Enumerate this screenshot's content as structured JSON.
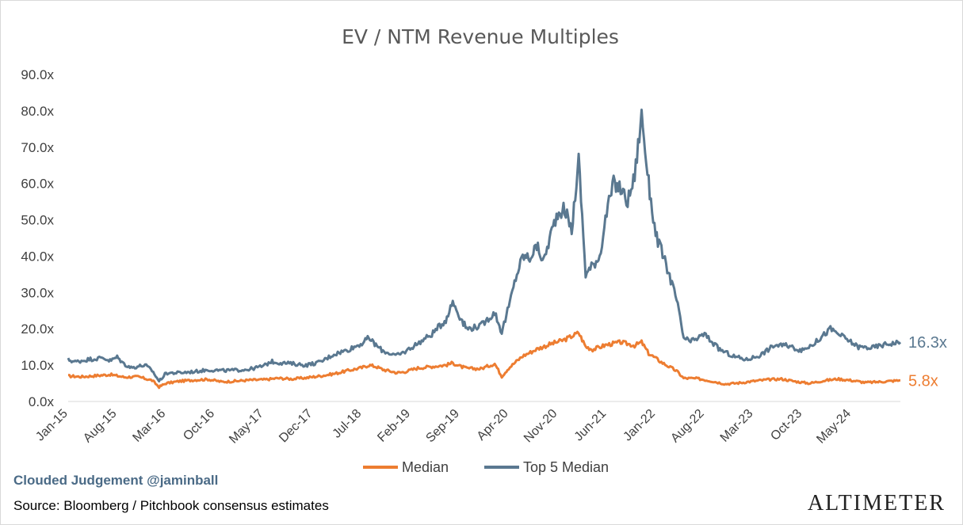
{
  "chart_data": {
    "type": "line",
    "title": "EV / NTM Revenue Multiples",
    "y_tick_labels": [
      "0.0x",
      "10.0x",
      "20.0x",
      "30.0x",
      "40.0x",
      "50.0x",
      "60.0x",
      "70.0x",
      "80.0x",
      "90.0x"
    ],
    "ylim": [
      0,
      90
    ],
    "x_tick_labels": [
      "Jan-15",
      "Aug-15",
      "Mar-16",
      "Oct-16",
      "May-17",
      "Dec-17",
      "Jul-18",
      "Feb-19",
      "Sep-19",
      "Apr-20",
      "Nov-20",
      "Jun-21",
      "Jan-22",
      "Aug-22",
      "Mar-23",
      "Oct-23",
      "May-24"
    ],
    "xlim": [
      "2015-01",
      "2024-12"
    ],
    "grid": false,
    "legend_position": "bottom",
    "series": [
      {
        "name": "Median",
        "color": "#ED7D31",
        "end_label": "5.8x",
        "points": [
          [
            "2015-01",
            7.0
          ],
          [
            "2015-03",
            6.8
          ],
          [
            "2015-05",
            7.1
          ],
          [
            "2015-07",
            7.4
          ],
          [
            "2015-09",
            6.7
          ],
          [
            "2015-11",
            6.8
          ],
          [
            "2016-01",
            5.8
          ],
          [
            "2016-02",
            4.0
          ],
          [
            "2016-03",
            5.0
          ],
          [
            "2016-05",
            5.6
          ],
          [
            "2016-07",
            5.9
          ],
          [
            "2016-09",
            6.1
          ],
          [
            "2016-11",
            5.4
          ],
          [
            "2017-01",
            5.6
          ],
          [
            "2017-03",
            5.9
          ],
          [
            "2017-05",
            6.0
          ],
          [
            "2017-07",
            6.4
          ],
          [
            "2017-09",
            6.2
          ],
          [
            "2017-11",
            6.5
          ],
          [
            "2018-01",
            7.0
          ],
          [
            "2018-03",
            7.6
          ],
          [
            "2018-05",
            8.5
          ],
          [
            "2018-07",
            9.3
          ],
          [
            "2018-08",
            10.0
          ],
          [
            "2018-09",
            9.6
          ],
          [
            "2018-10",
            8.8
          ],
          [
            "2018-12",
            7.9
          ],
          [
            "2019-01",
            8.1
          ],
          [
            "2019-03",
            9.2
          ],
          [
            "2019-05",
            9.6
          ],
          [
            "2019-07",
            10.0
          ],
          [
            "2019-08",
            10.6
          ],
          [
            "2019-09",
            9.7
          ],
          [
            "2019-10",
            9.1
          ],
          [
            "2019-12",
            9.0
          ],
          [
            "2020-02",
            10.4
          ],
          [
            "2020-03",
            6.9
          ],
          [
            "2020-04",
            9.2
          ],
          [
            "2020-06",
            12.5
          ],
          [
            "2020-08",
            14.4
          ],
          [
            "2020-10",
            15.8
          ],
          [
            "2020-12",
            17.0
          ],
          [
            "2021-02",
            18.9
          ],
          [
            "2021-03",
            15.1
          ],
          [
            "2021-04",
            14.3
          ],
          [
            "2021-06",
            15.6
          ],
          [
            "2021-08",
            16.3
          ],
          [
            "2021-10",
            15.4
          ],
          [
            "2021-11",
            16.3
          ],
          [
            "2021-12",
            13.2
          ],
          [
            "2022-02",
            10.6
          ],
          [
            "2022-04",
            8.4
          ],
          [
            "2022-05",
            6.4
          ],
          [
            "2022-07",
            6.3
          ],
          [
            "2022-09",
            5.6
          ],
          [
            "2022-11",
            4.8
          ],
          [
            "2023-01",
            5.1
          ],
          [
            "2023-03",
            5.6
          ],
          [
            "2023-05",
            6.0
          ],
          [
            "2023-07",
            6.2
          ],
          [
            "2023-09",
            5.5
          ],
          [
            "2023-11",
            5.0
          ],
          [
            "2024-01",
            5.7
          ],
          [
            "2024-03",
            6.2
          ],
          [
            "2024-05",
            5.8
          ],
          [
            "2024-07",
            5.2
          ],
          [
            "2024-09",
            5.4
          ],
          [
            "2024-12",
            5.8
          ]
        ]
      },
      {
        "name": "Top 5 Median",
        "color": "#5A7890",
        "end_label": "16.3x",
        "points": [
          [
            "2015-01",
            11.5
          ],
          [
            "2015-02",
            10.9
          ],
          [
            "2015-04",
            11.6
          ],
          [
            "2015-06",
            12.0
          ],
          [
            "2015-07",
            11.2
          ],
          [
            "2015-08",
            12.2
          ],
          [
            "2015-09",
            10.3
          ],
          [
            "2015-10",
            9.3
          ],
          [
            "2015-12",
            10.0
          ],
          [
            "2016-01",
            8.5
          ],
          [
            "2016-02",
            5.6
          ],
          [
            "2016-03",
            7.8
          ],
          [
            "2016-05",
            7.9
          ],
          [
            "2016-07",
            8.2
          ],
          [
            "2016-09",
            8.7
          ],
          [
            "2016-11",
            8.5
          ],
          [
            "2017-01",
            8.6
          ],
          [
            "2017-03",
            8.9
          ],
          [
            "2017-05",
            9.8
          ],
          [
            "2017-06",
            11.0
          ],
          [
            "2017-07",
            10.7
          ],
          [
            "2017-09",
            10.4
          ],
          [
            "2017-11",
            10.0
          ],
          [
            "2018-01",
            10.8
          ],
          [
            "2018-03",
            13.0
          ],
          [
            "2018-05",
            14.2
          ],
          [
            "2018-07",
            16.0
          ],
          [
            "2018-08",
            17.5
          ],
          [
            "2018-09",
            15.5
          ],
          [
            "2018-10",
            13.9
          ],
          [
            "2018-12",
            12.6
          ],
          [
            "2019-01",
            13.5
          ],
          [
            "2019-03",
            16.0
          ],
          [
            "2019-05",
            18.5
          ],
          [
            "2019-07",
            22.5
          ],
          [
            "2019-08",
            27.5
          ],
          [
            "2019-09",
            23.4
          ],
          [
            "2019-10",
            20.0
          ],
          [
            "2019-12",
            20.8
          ],
          [
            "2020-02",
            24.5
          ],
          [
            "2020-03",
            19.0
          ],
          [
            "2020-04",
            26.0
          ],
          [
            "2020-05",
            34.0
          ],
          [
            "2020-06",
            40.0
          ],
          [
            "2020-07",
            39.5
          ],
          [
            "2020-08",
            42.8
          ],
          [
            "2020-09",
            38.5
          ],
          [
            "2020-10",
            46.0
          ],
          [
            "2020-11",
            52.0
          ],
          [
            "2020-12",
            53.0
          ],
          [
            "2021-01",
            47.0
          ],
          [
            "2021-02",
            66.5
          ],
          [
            "2021-03",
            35.0
          ],
          [
            "2021-04",
            37.5
          ],
          [
            "2021-05",
            40.0
          ],
          [
            "2021-06",
            52.0
          ],
          [
            "2021-07",
            60.0
          ],
          [
            "2021-08",
            58.5
          ],
          [
            "2021-09",
            55.0
          ],
          [
            "2021-10",
            62.0
          ],
          [
            "2021-11",
            79.0
          ],
          [
            "2021-12",
            60.0
          ],
          [
            "2022-01",
            46.0
          ],
          [
            "2022-02",
            40.5
          ],
          [
            "2022-03",
            34.5
          ],
          [
            "2022-04",
            28.0
          ],
          [
            "2022-05",
            17.5
          ],
          [
            "2022-06",
            16.4
          ],
          [
            "2022-08",
            18.5
          ],
          [
            "2022-10",
            14.5
          ],
          [
            "2022-12",
            12.5
          ],
          [
            "2023-02",
            11.5
          ],
          [
            "2023-04",
            12.8
          ],
          [
            "2023-06",
            15.5
          ],
          [
            "2023-08",
            15.3
          ],
          [
            "2023-10",
            14.0
          ],
          [
            "2023-12",
            16.5
          ],
          [
            "2024-02",
            20.0
          ],
          [
            "2024-04",
            17.5
          ],
          [
            "2024-06",
            15.0
          ],
          [
            "2024-08",
            14.8
          ],
          [
            "2024-10",
            15.8
          ],
          [
            "2024-12",
            16.3
          ]
        ]
      }
    ]
  },
  "footer": {
    "credit": "Clouded Judgement @jaminball",
    "source": "Source: Bloomberg / Pitchbook consensus estimates",
    "brand": "ALTIMETER"
  }
}
